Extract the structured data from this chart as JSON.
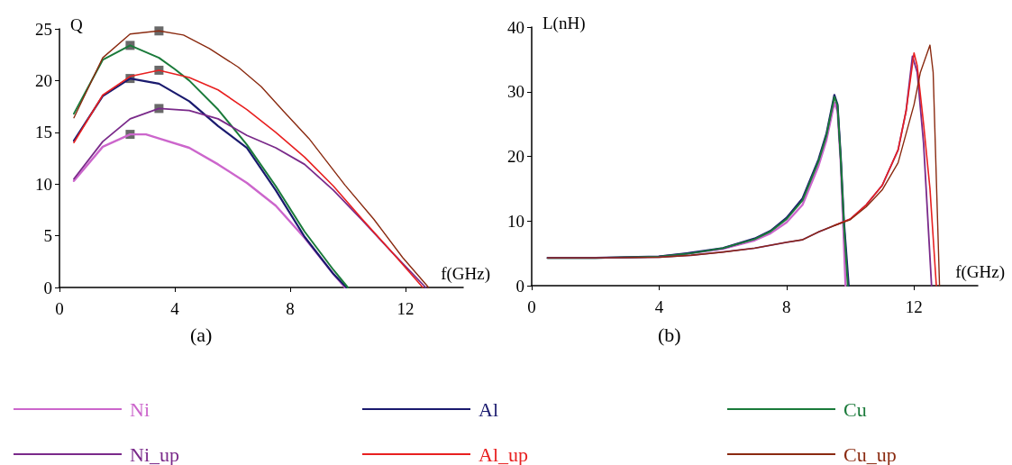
{
  "chart_data": [
    {
      "type": "line",
      "title": "(a)",
      "xlabel": "f(GHz)",
      "ylabel": "Q",
      "xlim": [
        0,
        14
      ],
      "xticks": [
        0,
        4,
        8,
        12
      ],
      "ylim": [
        0,
        25
      ],
      "yticks": [
        0,
        5,
        10,
        15,
        20,
        25
      ],
      "legend": "bottom",
      "grid": false,
      "series": [
        {
          "name": "Ni",
          "color": "#cc66cc",
          "x": [
            0.5,
            1.5,
            2.45,
            3.0,
            3.45,
            4.5,
            5.5,
            6.5,
            7.5,
            8.5,
            9.5,
            9.9
          ],
          "values": [
            10.3,
            13.6,
            14.8,
            14.8,
            14.4,
            13.5,
            11.9,
            10.1,
            7.9,
            4.8,
            1.3,
            0
          ]
        },
        {
          "name": "Al",
          "color": "#1a1a6e",
          "x": [
            0.5,
            1.5,
            2.45,
            3.45,
            4.5,
            5.5,
            6.5,
            7.5,
            8.5,
            9.5,
            9.95
          ],
          "values": [
            14.2,
            18.5,
            20.2,
            19.7,
            18,
            15.6,
            13.5,
            9.4,
            4.9,
            1.3,
            0
          ]
        },
        {
          "name": "Cu",
          "color": "#1a7a3a",
          "x": [
            0.5,
            1.5,
            2.45,
            3.45,
            4.0,
            4.5,
            5.5,
            6.5,
            7.5,
            8.5,
            9.5,
            10.0
          ],
          "values": [
            16.8,
            22.0,
            23.4,
            22.2,
            21.1,
            20,
            17.2,
            13.8,
            9.8,
            5.4,
            1.7,
            0
          ]
        },
        {
          "name": "Ni_up",
          "color": "#7a2a8a",
          "x": [
            0.5,
            1.5,
            2.45,
            3.45,
            4.5,
            5.5,
            6.5,
            7.5,
            8.5,
            9.5,
            10.5,
            11.5,
            12.7
          ],
          "values": [
            10.5,
            14.1,
            16.3,
            17.3,
            17.1,
            16.3,
            14.7,
            13.5,
            11.9,
            9.4,
            6.5,
            3.5,
            0
          ]
        },
        {
          "name": "Al_up",
          "color": "#e82020",
          "x": [
            0.5,
            1.5,
            2.45,
            3.45,
            4.5,
            5.5,
            6.5,
            7.5,
            8.5,
            9.5,
            10.5,
            11.5,
            12.6
          ],
          "values": [
            14.0,
            18.6,
            20.4,
            21.0,
            20.3,
            19.1,
            17.2,
            15.0,
            12.6,
            9.8,
            6.6,
            3.5,
            0
          ]
        },
        {
          "name": "Cu_up",
          "color": "#8a2a10",
          "x": [
            0.5,
            1.5,
            2.45,
            3.45,
            4.3,
            5.2,
            6.2,
            7.0,
            7.75,
            8.65,
            9.9,
            10.9,
            11.9,
            12.8
          ],
          "values": [
            16.4,
            22.2,
            24.5,
            24.8,
            24.4,
            23.1,
            21.3,
            19.4,
            17.1,
            14.4,
            9.9,
            6.6,
            2.9,
            0
          ]
        },
        {
          "type": "scatter",
          "marker": "square",
          "color": "#444444",
          "x": [
            2.45,
            2.45,
            2.45,
            3.45,
            3.45,
            3.45
          ],
          "values": [
            14.8,
            20.2,
            23.4,
            17.3,
            21.0,
            24.8
          ]
        }
      ]
    },
    {
      "type": "line",
      "title": "(b)",
      "xlabel": "f(GHz)",
      "ylabel": "L(nH)",
      "xlim": [
        0,
        14
      ],
      "xticks": [
        0,
        4,
        8,
        12
      ],
      "ylim": [
        0,
        40
      ],
      "yticks": [
        0,
        10,
        20,
        30,
        40
      ],
      "grid": false,
      "series": [
        {
          "color": "#cc66cc",
          "x": [
            4,
            5,
            6,
            7,
            7.5,
            8,
            8.5,
            9.0,
            9.25,
            9.5,
            9.6,
            9.7,
            9.78,
            9.85
          ],
          "values": [
            4.5,
            5.0,
            5.7,
            7.0,
            8.1,
            9.8,
            12.5,
            18.5,
            22.5,
            28.3,
            27,
            19,
            9,
            0
          ]
        },
        {
          "color": "#1a1a6e",
          "x": [
            0.5,
            2,
            4,
            5,
            6,
            7,
            7.5,
            8,
            8.5,
            9.0,
            9.25,
            9.5,
            9.6,
            9.7,
            9.8,
            9.95
          ],
          "values": [
            4.3,
            4.3,
            4.5,
            5.1,
            5.8,
            7.3,
            8.5,
            10.5,
            13.5,
            19.5,
            23.5,
            29.5,
            28,
            20,
            10,
            0
          ]
        },
        {
          "color": "#1a7a3a",
          "x": [
            0.5,
            2,
            4,
            5,
            6,
            7,
            7.5,
            8,
            8.5,
            9.0,
            9.25,
            9.5,
            9.6,
            9.7,
            9.8,
            9.92
          ],
          "values": [
            4.3,
            4.3,
            4.5,
            5.0,
            5.8,
            7.2,
            8.4,
            10.3,
            13.2,
            19.2,
            23.2,
            29.2,
            27.8,
            19.5,
            9.5,
            0
          ]
        },
        {
          "color": "#7a2a8a",
          "x": [
            0.5,
            2,
            4,
            5,
            6,
            7,
            8,
            8.5,
            9,
            9.5,
            10,
            10.5,
            11,
            11.5,
            11.75,
            11.95,
            12.1,
            12.3,
            12.55
          ],
          "values": [
            4.3,
            4.3,
            4.4,
            4.7,
            5.2,
            5.8,
            6.7,
            7.1,
            8.3,
            9.3,
            10.3,
            12.5,
            15.5,
            21,
            27,
            35.5,
            33,
            22,
            0
          ]
        },
        {
          "color": "#e82020",
          "x": [
            9.5,
            10,
            10.5,
            11,
            11.5,
            11.75,
            12.0,
            12.1,
            12.3,
            12.5,
            12.7
          ],
          "values": [
            9.3,
            10.3,
            12.5,
            15.5,
            21,
            27,
            36,
            34,
            25,
            15,
            0
          ]
        },
        {
          "color": "#8a2a10",
          "x": [
            0.5,
            2,
            4,
            5,
            6,
            7,
            8,
            8.5,
            9,
            9.5,
            10,
            10.5,
            11,
            11.5,
            12.0,
            12.2,
            12.5,
            12.6,
            12.8
          ],
          "values": [
            4.3,
            4.3,
            4.4,
            4.7,
            5.2,
            5.8,
            6.7,
            7.1,
            8.3,
            9.3,
            10.2,
            12.2,
            14.8,
            19,
            28,
            33,
            37.2,
            33,
            0
          ]
        }
      ]
    }
  ]
}
